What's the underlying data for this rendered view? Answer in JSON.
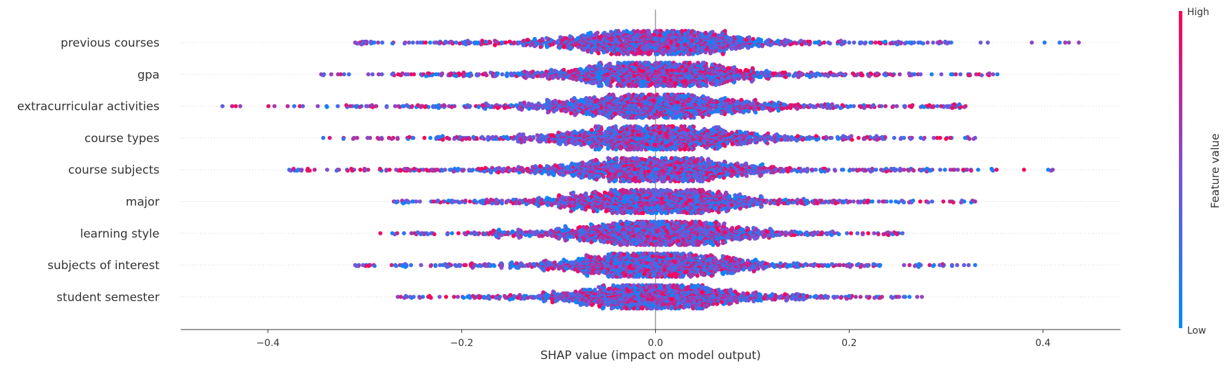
{
  "chart_data": {
    "type": "scatter",
    "title": "",
    "xlabel": "SHAP value (impact on model output)",
    "ylabel": "",
    "xlim": [
      -0.49,
      0.48
    ],
    "x_ticks": [
      {
        "value": -0.4,
        "label": "−0.4"
      },
      {
        "value": -0.2,
        "label": "−0.2"
      },
      {
        "value": 0.0,
        "label": "0.0"
      },
      {
        "value": 0.2,
        "label": "0.2"
      },
      {
        "value": 0.4,
        "label": "0.4"
      }
    ],
    "grid": false,
    "features": [
      {
        "name": "previous courses",
        "min": -0.31,
        "max": 0.437,
        "spread": 0.5,
        "bulge": 0.1
      },
      {
        "name": "gpa",
        "min": -0.345,
        "max": 0.353,
        "spread": 0.48,
        "bulge": 0.05
      },
      {
        "name": "extracurricular activities",
        "min": -0.447,
        "max": 0.32,
        "spread": 0.55,
        "bulge": 0.0
      },
      {
        "name": "course types",
        "min": -0.343,
        "max": 0.33,
        "spread": 0.48,
        "bulge": 0.0
      },
      {
        "name": "course subjects",
        "min": -0.378,
        "max": 0.41,
        "spread": 0.55,
        "bulge": 0.0
      },
      {
        "name": "major",
        "min": -0.27,
        "max": 0.33,
        "spread": 0.45,
        "bulge": 0.0
      },
      {
        "name": "learning style",
        "min": -0.284,
        "max": 0.255,
        "spread": 0.42,
        "bulge": 0.0
      },
      {
        "name": "subjects of interest",
        "min": -0.31,
        "max": 0.33,
        "spread": 0.42,
        "bulge": 0.0
      },
      {
        "name": "student semester",
        "min": -0.266,
        "max": 0.275,
        "spread": 0.35,
        "bulge": 0.0
      }
    ],
    "colorbar": {
      "label": "Feature value",
      "high_label": "High",
      "low_label": "Low",
      "high_color": "#ff0052",
      "low_color": "#008bfb"
    },
    "legend": "colorbar-right"
  },
  "colors": {
    "axis": "#333333",
    "zero_line": "#999999",
    "row_guides": "#cccccc"
  }
}
